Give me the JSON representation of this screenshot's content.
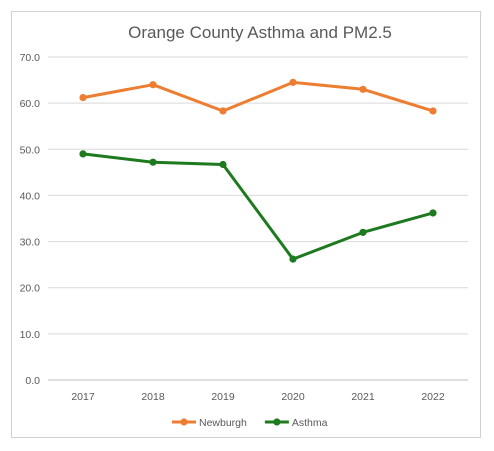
{
  "chart_data": {
    "type": "line",
    "title": "Orange County Asthma and PM2.5",
    "xlabel": "",
    "ylabel": "",
    "categories": [
      "2017",
      "2018",
      "2019",
      "2020",
      "2021",
      "2022"
    ],
    "ylim": [
      0,
      70
    ],
    "ytick_labels": [
      "0.0",
      "10.0",
      "20.0",
      "30.0",
      "40.0",
      "50.0",
      "60.0",
      "70.0"
    ],
    "grid": true,
    "legend_position": "bottom",
    "series": [
      {
        "name": "Newburgh",
        "color": "#ED7D31",
        "values": [
          61.2,
          64.0,
          58.3,
          64.5,
          63.0,
          58.3
        ]
      },
      {
        "name": "Asthma",
        "color": "#1E7A1E",
        "values": [
          49.0,
          47.2,
          46.7,
          26.2,
          32.0,
          36.2
        ]
      }
    ]
  }
}
